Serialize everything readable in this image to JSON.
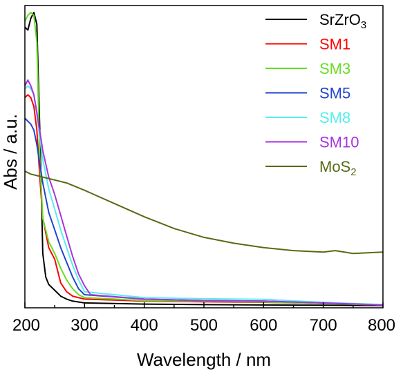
{
  "chart_data": {
    "type": "line",
    "title": "",
    "xlabel": "Wavelength / nm",
    "ylabel": "Abs / a.u.",
    "xlim": [
      200,
      800
    ],
    "ylim": [
      0,
      1.0
    ],
    "x_ticks": [
      200,
      300,
      400,
      500,
      600,
      700,
      800
    ],
    "x_tick_labels": [
      "200",
      "300",
      "400",
      "500",
      "600",
      "700",
      "800"
    ],
    "y_ticks_shown": false,
    "grid": false,
    "legend_position": "top-right",
    "series": [
      {
        "name": "SrZrO",
        "name_subscript": "3",
        "color": "#000000",
        "points": [
          [
            200,
            0.95
          ],
          [
            205,
            0.94
          ],
          [
            210,
            0.98
          ],
          [
            215,
            1.0
          ],
          [
            220,
            0.96
          ],
          [
            225,
            0.6
          ],
          [
            230,
            0.18
          ],
          [
            235,
            0.1
          ],
          [
            240,
            0.075
          ],
          [
            250,
            0.055
          ],
          [
            260,
            0.035
          ],
          [
            270,
            0.025
          ],
          [
            280,
            0.018
          ],
          [
            300,
            0.012
          ],
          [
            400,
            0.008
          ],
          [
            500,
            0.006
          ],
          [
            600,
            0.005
          ],
          [
            700,
            0.004
          ],
          [
            800,
            0.003
          ]
        ]
      },
      {
        "name": "SM1",
        "color": "#ff0000",
        "points": [
          [
            200,
            0.71
          ],
          [
            205,
            0.72
          ],
          [
            210,
            0.71
          ],
          [
            215,
            0.68
          ],
          [
            220,
            0.6
          ],
          [
            225,
            0.44
          ],
          [
            230,
            0.3
          ],
          [
            240,
            0.2
          ],
          [
            250,
            0.16
          ],
          [
            255,
            0.12
          ],
          [
            260,
            0.08
          ],
          [
            270,
            0.05
          ],
          [
            280,
            0.035
          ],
          [
            300,
            0.025
          ],
          [
            400,
            0.018
          ],
          [
            500,
            0.016
          ],
          [
            600,
            0.014
          ],
          [
            700,
            0.01
          ],
          [
            800,
            0.005
          ]
        ]
      },
      {
        "name": "SM3",
        "color": "#66dd22",
        "points": [
          [
            200,
            0.97
          ],
          [
            205,
            0.99
          ],
          [
            210,
            1.0
          ],
          [
            215,
            0.99
          ],
          [
            220,
            0.9
          ],
          [
            225,
            0.5
          ],
          [
            230,
            0.3
          ],
          [
            240,
            0.22
          ],
          [
            250,
            0.18
          ],
          [
            260,
            0.13
          ],
          [
            270,
            0.09
          ],
          [
            280,
            0.06
          ],
          [
            290,
            0.04
          ],
          [
            300,
            0.03
          ],
          [
            400,
            0.02
          ],
          [
            500,
            0.018
          ],
          [
            600,
            0.015
          ],
          [
            700,
            0.01
          ],
          [
            800,
            0.005
          ]
        ]
      },
      {
        "name": "SM5",
        "color": "#2244cc",
        "points": [
          [
            200,
            0.64
          ],
          [
            205,
            0.63
          ],
          [
            210,
            0.62
          ],
          [
            215,
            0.6
          ],
          [
            220,
            0.55
          ],
          [
            230,
            0.42
          ],
          [
            240,
            0.32
          ],
          [
            250,
            0.26
          ],
          [
            260,
            0.2
          ],
          [
            270,
            0.15
          ],
          [
            280,
            0.1
          ],
          [
            290,
            0.06
          ],
          [
            300,
            0.04
          ],
          [
            400,
            0.025
          ],
          [
            500,
            0.02
          ],
          [
            600,
            0.018
          ],
          [
            700,
            0.012
          ],
          [
            800,
            0.005
          ]
        ]
      },
      {
        "name": "SM8",
        "color": "#55eeee",
        "points": [
          [
            200,
            0.74
          ],
          [
            205,
            0.75
          ],
          [
            210,
            0.74
          ],
          [
            215,
            0.72
          ],
          [
            220,
            0.65
          ],
          [
            230,
            0.5
          ],
          [
            240,
            0.4
          ],
          [
            250,
            0.33
          ],
          [
            260,
            0.26
          ],
          [
            270,
            0.2
          ],
          [
            280,
            0.14
          ],
          [
            290,
            0.09
          ],
          [
            300,
            0.05
          ],
          [
            400,
            0.03
          ],
          [
            500,
            0.026
          ],
          [
            600,
            0.024
          ],
          [
            700,
            0.014
          ],
          [
            800,
            0.006
          ]
        ]
      },
      {
        "name": "SM10",
        "color": "#aa33dd",
        "points": [
          [
            200,
            0.75
          ],
          [
            205,
            0.77
          ],
          [
            210,
            0.75
          ],
          [
            215,
            0.72
          ],
          [
            220,
            0.66
          ],
          [
            230,
            0.53
          ],
          [
            240,
            0.44
          ],
          [
            250,
            0.38
          ],
          [
            260,
            0.31
          ],
          [
            270,
            0.24
          ],
          [
            280,
            0.17
          ],
          [
            290,
            0.11
          ],
          [
            300,
            0.07
          ],
          [
            310,
            0.04
          ],
          [
            400,
            0.025
          ],
          [
            500,
            0.02
          ],
          [
            600,
            0.018
          ],
          [
            700,
            0.012
          ],
          [
            800,
            0.005
          ]
        ]
      },
      {
        "name": "MoS",
        "name_subscript": "2",
        "color": "#556b14",
        "points": [
          [
            200,
            0.46
          ],
          [
            210,
            0.45
          ],
          [
            220,
            0.445
          ],
          [
            230,
            0.44
          ],
          [
            250,
            0.43
          ],
          [
            270,
            0.42
          ],
          [
            300,
            0.395
          ],
          [
            350,
            0.35
          ],
          [
            400,
            0.305
          ],
          [
            450,
            0.265
          ],
          [
            500,
            0.235
          ],
          [
            550,
            0.215
          ],
          [
            600,
            0.2
          ],
          [
            650,
            0.19
          ],
          [
            700,
            0.185
          ],
          [
            720,
            0.19
          ],
          [
            750,
            0.18
          ],
          [
            800,
            0.185
          ]
        ]
      }
    ]
  }
}
